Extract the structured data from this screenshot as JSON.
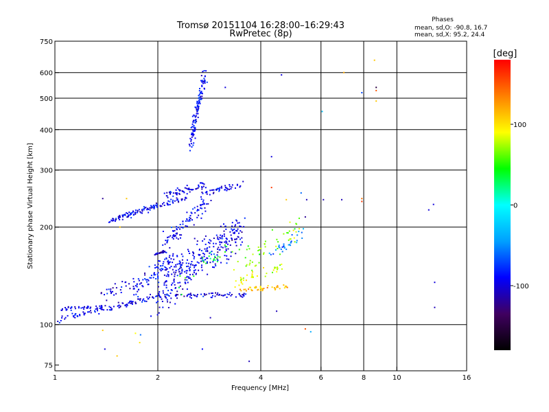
{
  "chart_data": {
    "type": "scatter",
    "title": "Tromsø 20151104 16:28:00–16:29:43",
    "subtitle": "RwPretec (8p)",
    "xlabel": "Frequency [MHz]",
    "ylabel": "Stationary phase Virtual Height [km]",
    "xscale": "log",
    "yscale": "log",
    "xlim": [
      1,
      16
    ],
    "ylim": [
      72,
      750
    ],
    "x_ticks": [
      1,
      2,
      4,
      6,
      8,
      10,
      16
    ],
    "x_grid": [
      2,
      4,
      6,
      8,
      10
    ],
    "y_ticks": [
      75,
      100,
      200,
      300,
      400,
      500,
      600,
      750
    ],
    "y_grid": [
      100,
      200,
      300,
      400,
      500,
      600
    ],
    "grid": true,
    "legend": {
      "title": "Phases",
      "line1": "mean, sd,O: -90.8, 16.7",
      "line2": "mean, sd,X:  95.2, 24.4"
    },
    "colorbar": {
      "label": "[deg]",
      "range": [
        -180,
        180
      ],
      "ticks": [
        -100,
        0,
        100
      ],
      "colors": [
        "#000000",
        "#400060",
        "#0000ff",
        "#00a0ff",
        "#00ffff",
        "#00ff00",
        "#ffff00",
        "#ff8000",
        "#ff0000"
      ]
    },
    "series": [
      {
        "mode": "O",
        "clusters": [
          {
            "x0": 1.0,
            "x1": 1.9,
            "h0": 103,
            "h1": 120,
            "n": 90,
            "sx": 0.01,
            "sh": 2,
            "p": -95
          },
          {
            "x0": 1.05,
            "x1": 1.4,
            "h0": 112,
            "h1": 113,
            "n": 40,
            "sx": 0.01,
            "sh": 1.5,
            "p": -95
          },
          {
            "x0": 1.9,
            "x1": 3.6,
            "h0": 122,
            "h1": 124,
            "n": 80,
            "sx": 0.02,
            "sh": 2,
            "p": -100
          },
          {
            "x0": 1.7,
            "x1": 2.2,
            "h0": 126,
            "h1": 160,
            "n": 80,
            "sx": 0.03,
            "sh": 10,
            "p": -90
          },
          {
            "x0": 1.3,
            "x1": 1.8,
            "h0": 122,
            "h1": 135,
            "n": 35,
            "sx": 0.03,
            "sh": 5,
            "p": -95
          },
          {
            "x0": 2.0,
            "x1": 3.5,
            "h0": 125,
            "h1": 195,
            "n": 320,
            "sx": 0.04,
            "sh": 18,
            "p": -95
          },
          {
            "x0": 2.1,
            "x1": 2.8,
            "h0": 175,
            "h1": 240,
            "n": 90,
            "sx": 0.04,
            "sh": 10,
            "p": -90
          },
          {
            "x0": 1.45,
            "x1": 2.4,
            "h0": 210,
            "h1": 245,
            "n": 120,
            "sx": 0.02,
            "sh": 4,
            "p": -95
          },
          {
            "x0": 2.1,
            "x1": 2.75,
            "h0": 250,
            "h1": 270,
            "n": 60,
            "sx": 0.02,
            "sh": 6,
            "p": -95
          },
          {
            "x0": 2.75,
            "x1": 3.5,
            "h0": 255,
            "h1": 270,
            "n": 45,
            "sx": 0.02,
            "sh": 5,
            "p": -95
          },
          {
            "x0": 2.5,
            "x1": 2.75,
            "h0": 360,
            "h1": 590,
            "n": 120,
            "sx": 0.015,
            "sh": 25,
            "p": -90
          },
          {
            "x0": 1.95,
            "x1": 2.1,
            "h0": 165,
            "h1": 168,
            "n": 25,
            "sx": 0.005,
            "sh": 1,
            "p": -110
          },
          {
            "x0": 4.3,
            "x1": 5.4,
            "h0": 162,
            "h1": 195,
            "n": 30,
            "sx": 0.02,
            "sh": 6,
            "p": -50
          }
        ]
      },
      {
        "mode": "X",
        "clusters": [
          {
            "x0": 3.5,
            "x1": 4.9,
            "h0": 128,
            "h1": 131,
            "n": 45,
            "sx": 0.02,
            "sh": 2,
            "p": 115
          },
          {
            "x0": 3.4,
            "x1": 4.6,
            "h0": 135,
            "h1": 150,
            "n": 40,
            "sx": 0.03,
            "sh": 5,
            "p": 85
          },
          {
            "x0": 3.5,
            "x1": 5.2,
            "h0": 150,
            "h1": 200,
            "n": 50,
            "sx": 0.04,
            "sh": 12,
            "p": 70
          },
          {
            "x0": 2.3,
            "x1": 3.4,
            "h0": 130,
            "h1": 180,
            "n": 25,
            "sx": 0.04,
            "sh": 10,
            "p": 40
          }
        ]
      }
    ],
    "points": [
      {
        "x": 4.6,
        "y": 590,
        "p": -100
      },
      {
        "x": 3.15,
        "y": 540,
        "p": -100
      },
      {
        "x": 6.05,
        "y": 455,
        "p": -30
      },
      {
        "x": 7.0,
        "y": 600,
        "p": 120
      },
      {
        "x": 7.9,
        "y": 520,
        "p": -70
      },
      {
        "x": 8.6,
        "y": 655,
        "p": 110
      },
      {
        "x": 8.7,
        "y": 540,
        "p": -150
      },
      {
        "x": 8.7,
        "y": 528,
        "p": 150
      },
      {
        "x": 8.7,
        "y": 490,
        "p": 110
      },
      {
        "x": 4.3,
        "y": 330,
        "p": -100
      },
      {
        "x": 4.3,
        "y": 265,
        "p": 160
      },
      {
        "x": 4.75,
        "y": 243,
        "p": 110
      },
      {
        "x": 5.25,
        "y": 255,
        "p": -60
      },
      {
        "x": 5.45,
        "y": 243,
        "p": -110
      },
      {
        "x": 6.1,
        "y": 243,
        "p": -110
      },
      {
        "x": 6.9,
        "y": 243,
        "p": -110
      },
      {
        "x": 7.9,
        "y": 245,
        "p": 140
      },
      {
        "x": 7.9,
        "y": 240,
        "p": 160
      },
      {
        "x": 5.4,
        "y": 215,
        "p": -120
      },
      {
        "x": 12.8,
        "y": 235,
        "p": -100
      },
      {
        "x": 12.4,
        "y": 226,
        "p": -100
      },
      {
        "x": 12.9,
        "y": 135,
        "p": -100
      },
      {
        "x": 12.9,
        "y": 113,
        "p": -110
      },
      {
        "x": 4.45,
        "y": 110,
        "p": -110
      },
      {
        "x": 5.4,
        "y": 97,
        "p": 150
      },
      {
        "x": 5.6,
        "y": 95,
        "p": -40
      },
      {
        "x": 1.72,
        "y": 94,
        "p": 90
      },
      {
        "x": 1.78,
        "y": 93,
        "p": -60
      },
      {
        "x": 1.77,
        "y": 88,
        "p": 100
      },
      {
        "x": 1.4,
        "y": 84,
        "p": -100
      },
      {
        "x": 1.52,
        "y": 80,
        "p": 110
      },
      {
        "x": 1.38,
        "y": 96,
        "p": 110
      },
      {
        "x": 2.7,
        "y": 84,
        "p": -90
      },
      {
        "x": 2.85,
        "y": 105,
        "p": -110
      },
      {
        "x": 3.7,
        "y": 77,
        "p": -110
      },
      {
        "x": 1.38,
        "y": 245,
        "p": -120
      },
      {
        "x": 1.62,
        "y": 245,
        "p": 110
      },
      {
        "x": 1.55,
        "y": 200,
        "p": 110
      }
    ]
  }
}
